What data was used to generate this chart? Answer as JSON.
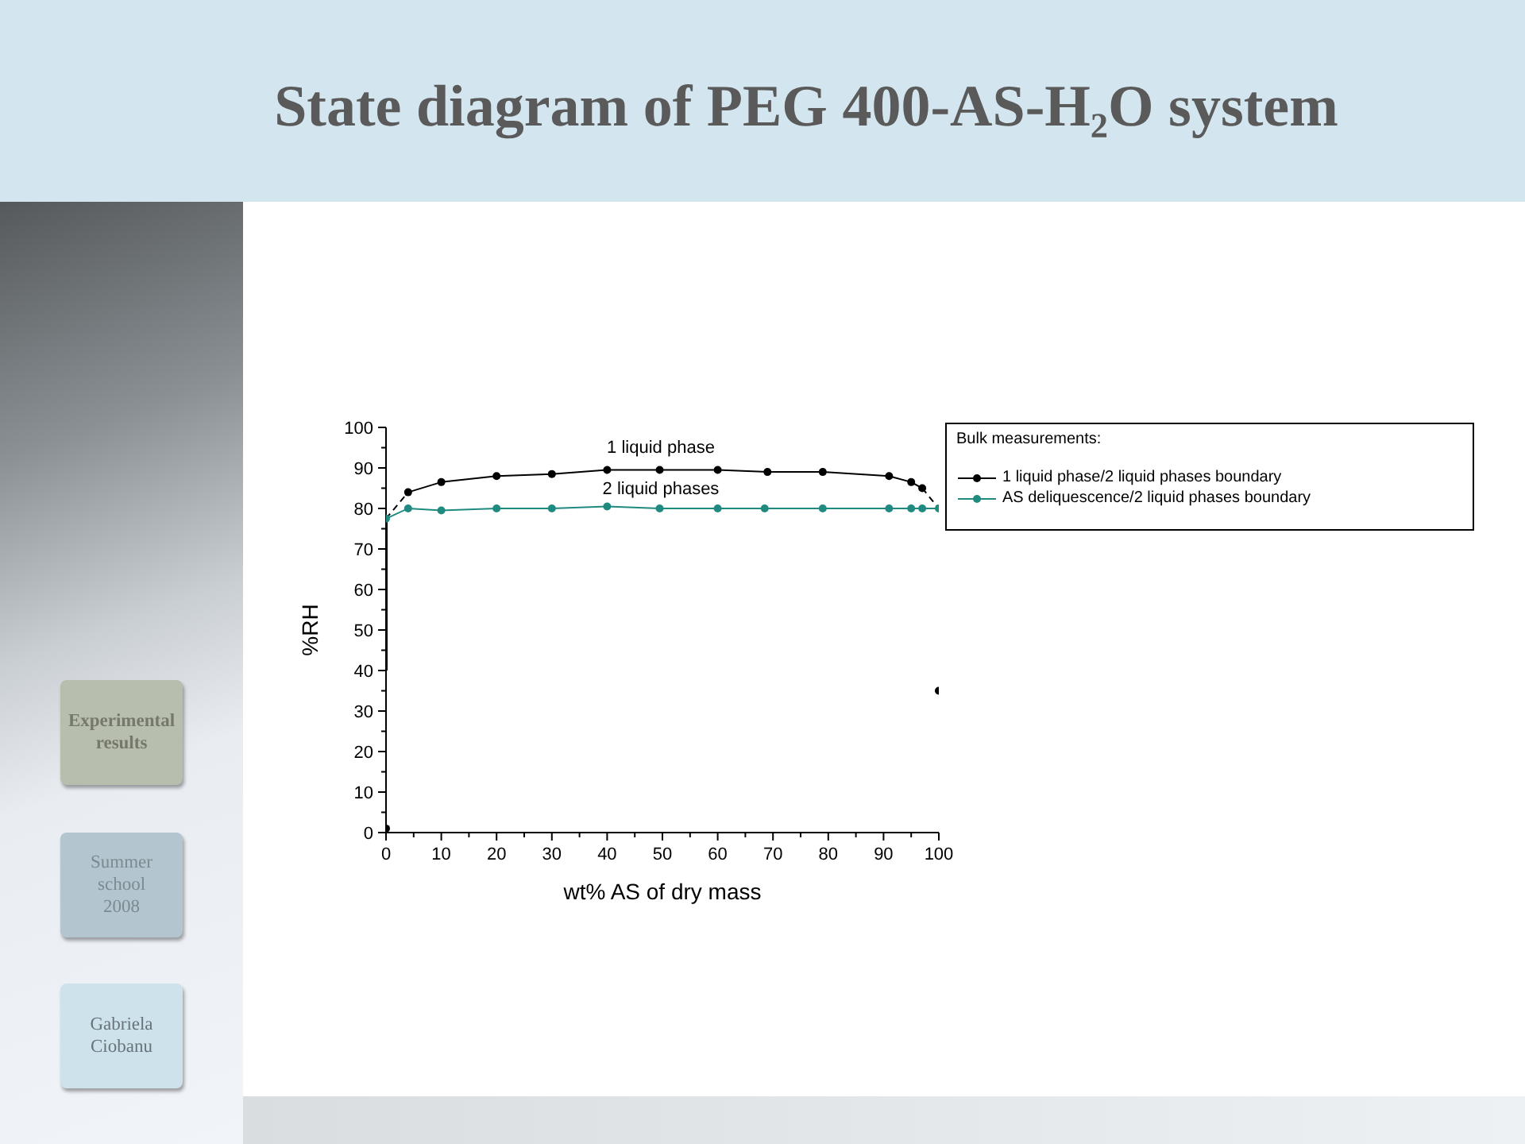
{
  "chart_data": {
    "type": "line",
    "title": "State diagram of PEG 400-AS-H₂O system",
    "xlabel": "wt% AS of dry mass",
    "ylabel": "%RH",
    "legend_title": "Bulk measurements:",
    "xlim": [
      0,
      100
    ],
    "ylim": [
      0,
      100
    ],
    "xticks": [
      0,
      {
        "value": 5,
        "label": null
      },
      10,
      {
        "value": 15,
        "label": null
      },
      20,
      {
        "value": 25,
        "label": null
      },
      30,
      {
        "value": 35,
        "label": null
      },
      40,
      {
        "value": 45,
        "label": null
      },
      50,
      {
        "value": 55,
        "label": null
      },
      60,
      {
        "value": 65,
        "label": null
      },
      70,
      {
        "value": 75,
        "label": null
      },
      80,
      {
        "value": 85,
        "label": null
      },
      90,
      {
        "value": 95,
        "label": null
      },
      100
    ],
    "yticks": [
      0,
      {
        "value": 5,
        "label": null
      },
      10,
      {
        "value": 15,
        "label": null
      },
      20,
      {
        "value": 25,
        "label": null
      },
      30,
      {
        "value": 35,
        "label": null
      },
      40,
      {
        "value": 45,
        "label": null
      },
      50,
      {
        "value": 55,
        "label": null
      },
      60,
      {
        "value": 65,
        "label": null
      },
      70,
      {
        "value": 75,
        "label": null
      },
      80,
      {
        "value": 85,
        "label": null
      },
      90,
      {
        "value": 95,
        "label": null
      },
      100
    ],
    "grid": false,
    "legend": "right",
    "marker": "circle",
    "line_style": "solid",
    "series": [
      {
        "name": "1 liquid phase/2 liquid phases boundary",
        "color": "#000000",
        "x": [
          4,
          10,
          20,
          30,
          40,
          49.5,
          60,
          69,
          79,
          91,
          95,
          97
        ],
        "values": [
          84,
          86.5,
          88,
          88.5,
          89.5,
          89.5,
          89.5,
          89,
          89,
          88,
          86.5,
          85
        ]
      },
      {
        "name": "AS deliquescence/2 liquid phases boundary",
        "color": "#1f8a80",
        "x": [
          0,
          4,
          10,
          20,
          30,
          40,
          49.5,
          60,
          68.5,
          79,
          91,
          95,
          97,
          100
        ],
        "values": [
          77.5,
          80,
          79.5,
          80,
          80,
          80.5,
          80,
          80,
          80,
          80,
          80,
          80,
          80,
          80
        ]
      },
      {
        "type": "line",
        "color": "#000000",
        "marker": "none",
        "line_style": "dashed",
        "x": [
          0,
          4
        ],
        "values": [
          77.5,
          84
        ]
      },
      {
        "type": "line",
        "color": "#000000",
        "marker": "none",
        "line_style": "dashed",
        "x": [
          97,
          100
        ],
        "values": [
          85,
          80
        ]
      },
      {
        "type": "line",
        "color": "#000000",
        "marker": "none",
        "x": [
          0,
          0
        ],
        "values": [
          77.5,
          40
        ]
      },
      {
        "type": "scatter",
        "color": "#000000",
        "x": [
          0,
          100
        ],
        "values": [
          1,
          35
        ]
      }
    ],
    "annotations": [
      "1 liquid phase",
      "2 liquid phases",
      "Experimental results",
      "Summer school 2008",
      "Gabriela Ciobanu"
    ]
  }
}
